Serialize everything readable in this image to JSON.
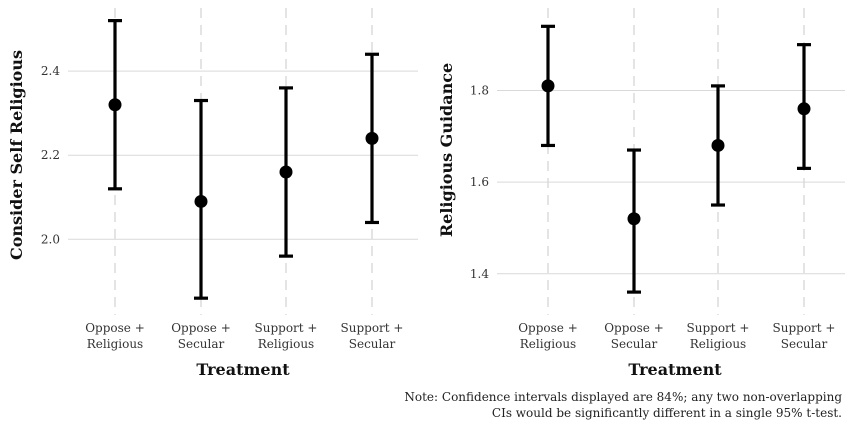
{
  "chart_data": [
    {
      "type": "scatter",
      "title": "",
      "xlabel": "Treatment",
      "ylabel": "Consider Self Religious",
      "categories": [
        [
          "Oppose +",
          "Religious"
        ],
        [
          "Oppose +",
          "Secular"
        ],
        [
          "Support +",
          "Religious"
        ],
        [
          "Support +",
          "Secular"
        ]
      ],
      "estimates": [
        2.32,
        2.09,
        2.16,
        2.24
      ],
      "ci_lower": [
        2.12,
        1.86,
        1.96,
        2.04
      ],
      "ci_upper": [
        2.52,
        2.33,
        2.36,
        2.44
      ],
      "yticks": [
        2.0,
        2.2,
        2.4
      ],
      "ytick_labels": [
        "2.0",
        "2.2",
        "2.4"
      ],
      "ylim": [
        1.82,
        2.55
      ],
      "grid": true
    },
    {
      "type": "scatter",
      "title": "",
      "xlabel": "Treatment",
      "ylabel": "Religious Guidance",
      "categories": [
        [
          "Oppose +",
          "Religious"
        ],
        [
          "Oppose +",
          "Secular"
        ],
        [
          "Support +",
          "Religious"
        ],
        [
          "Support +",
          "Secular"
        ]
      ],
      "estimates": [
        1.81,
        1.52,
        1.68,
        1.76
      ],
      "ci_lower": [
        1.68,
        1.36,
        1.55,
        1.63
      ],
      "ci_upper": [
        1.94,
        1.67,
        1.81,
        1.9
      ],
      "yticks": [
        1.4,
        1.6,
        1.8
      ],
      "ytick_labels": [
        "1.4",
        "1.6",
        "1.8"
      ],
      "ylim": [
        1.31,
        1.98
      ],
      "grid": true
    }
  ],
  "note": {
    "line1": "Note: Confidence intervals displayed are 84%; any two non-overlapping",
    "line2": "CIs would be significantly different in a single 95% t-test."
  },
  "colors": {
    "marks": "#000000",
    "grid": "#d9d9d9"
  }
}
